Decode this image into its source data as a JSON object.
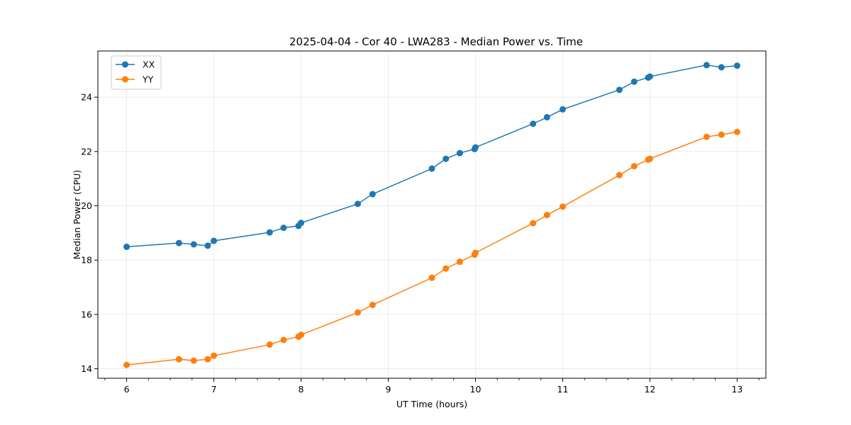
{
  "chart_data": {
    "type": "line",
    "title": "2025-04-04 - Cor 40 - LWA283 - Median Power vs. Time",
    "xlabel": "UT Time (hours)",
    "ylabel": "Median Power (CPU)",
    "xlim": [
      5.67,
      13.33
    ],
    "ylim": [
      13.65,
      25.7
    ],
    "xticks": [
      6,
      7,
      8,
      9,
      10,
      11,
      12,
      13
    ],
    "xminor_step": 0.25,
    "yticks": [
      14,
      16,
      18,
      20,
      22,
      24
    ],
    "grid": true,
    "legend_position": "upper left",
    "series": [
      {
        "name": "XX",
        "color": "#1f77b4",
        "x": [
          6.0,
          6.6,
          6.77,
          6.93,
          7.0,
          7.64,
          7.8,
          7.97,
          8.0,
          8.65,
          8.82,
          9.5,
          9.66,
          9.82,
          9.99,
          10.0,
          10.66,
          10.82,
          11.0,
          11.65,
          11.82,
          11.98,
          12.0,
          12.65,
          12.82,
          13.0
        ],
        "y": [
          18.49,
          18.63,
          18.58,
          18.53,
          18.71,
          19.02,
          19.19,
          19.26,
          19.37,
          20.07,
          20.43,
          21.37,
          21.73,
          21.94,
          22.09,
          22.15,
          23.02,
          23.26,
          23.55,
          24.27,
          24.57,
          24.72,
          24.76,
          25.18,
          25.1,
          25.16
        ]
      },
      {
        "name": "YY",
        "color": "#ff7f0e",
        "x": [
          6.0,
          6.6,
          6.77,
          6.93,
          7.0,
          7.64,
          7.8,
          7.97,
          8.0,
          8.65,
          8.82,
          9.5,
          9.66,
          9.82,
          9.99,
          10.0,
          10.66,
          10.82,
          11.0,
          11.65,
          11.82,
          11.98,
          12.0,
          12.65,
          12.82,
          13.0
        ],
        "y": [
          14.14,
          14.35,
          14.3,
          14.35,
          14.48,
          14.89,
          15.06,
          15.18,
          15.25,
          16.07,
          16.35,
          17.35,
          17.69,
          17.94,
          18.2,
          18.27,
          19.36,
          19.66,
          19.97,
          21.13,
          21.46,
          21.7,
          21.73,
          22.54,
          22.62,
          22.72
        ]
      }
    ]
  }
}
